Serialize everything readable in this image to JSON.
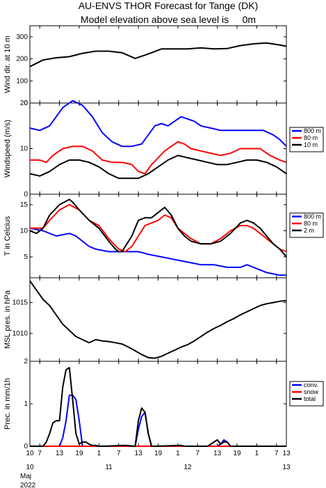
{
  "title_line1": "AU-ENVS THOR Forecast for Tange (DK)",
  "title_line2": "Model elevation above sea level is     0m",
  "x_axis": {
    "hour_labels": [
      "10",
      "7",
      "13",
      "19",
      "1",
      "7",
      "13",
      "19",
      "1",
      "7",
      "13",
      "19",
      "1",
      "7",
      "13"
    ],
    "day_labels": [
      "10",
      "11",
      "12",
      "13"
    ],
    "month_label": "Maj",
    "year_label": "2022"
  },
  "colors": {
    "blue": "#0000ff",
    "red": "#ff0000",
    "black": "#000000"
  },
  "chart_data": [
    {
      "type": "line",
      "ylabel": "Wind dir. at 10 m",
      "ylim": [
        0,
        350
      ],
      "yticks": [
        0,
        100,
        200,
        300
      ],
      "series": [
        {
          "color": "#000000",
          "x": [
            0,
            4,
            8,
            12,
            16,
            20,
            24,
            28,
            32,
            36,
            40,
            44,
            48,
            52,
            56,
            60,
            64,
            68,
            72,
            76,
            78
          ],
          "y": [
            165,
            195,
            205,
            210,
            225,
            235,
            235,
            228,
            202,
            222,
            245,
            245,
            245,
            250,
            245,
            247,
            260,
            268,
            272,
            263,
            257
          ]
        }
      ]
    },
    {
      "type": "line",
      "ylabel": "Windspeed (m/s)",
      "ylim": [
        0,
        20
      ],
      "yticks": [
        0,
        10,
        20
      ],
      "legend": [
        "800 m",
        "80 m",
        "10 m"
      ],
      "series": [
        {
          "name": "800 m",
          "color": "#0000ff",
          "x": [
            0,
            3,
            6,
            10,
            13,
            16,
            19,
            22,
            25,
            28,
            31,
            34,
            36,
            38,
            40,
            42,
            44,
            46,
            48,
            50,
            52,
            55,
            58,
            62,
            65,
            68,
            71,
            74,
            76,
            78
          ],
          "y": [
            14.5,
            14,
            15,
            19,
            20.5,
            19.5,
            17,
            13.5,
            11.5,
            10.5,
            10.5,
            11,
            13,
            15,
            15.5,
            15,
            16,
            17,
            16.5,
            16,
            15,
            14.5,
            14,
            14,
            14,
            14,
            14,
            13,
            12,
            10.5
          ]
        },
        {
          "name": "80 m",
          "color": "#ff0000",
          "x": [
            0,
            3,
            5,
            7,
            10,
            13,
            16,
            19,
            22,
            25,
            28,
            31,
            33,
            35,
            37,
            39,
            41,
            43,
            45,
            47,
            49,
            52,
            55,
            58,
            61,
            64,
            67,
            70,
            73,
            76,
            78
          ],
          "y": [
            7.5,
            7.5,
            7,
            8.5,
            10,
            10.5,
            10.5,
            9.5,
            7.5,
            7,
            7,
            6.5,
            5,
            4.5,
            6.5,
            8,
            9.5,
            10.5,
            11.5,
            11,
            10,
            9.5,
            9,
            8.5,
            9,
            10,
            10,
            10,
            8.5,
            7.5,
            7
          ]
        },
        {
          "name": "10 m",
          "color": "#000000",
          "x": [
            0,
            3,
            6,
            9,
            12,
            15,
            18,
            21,
            24,
            27,
            30,
            33,
            36,
            39,
            42,
            45,
            48,
            51,
            54,
            57,
            60,
            63,
            66,
            69,
            72,
            75,
            78
          ],
          "y": [
            4.5,
            4,
            5,
            6.5,
            7.5,
            7.5,
            7,
            6,
            4.5,
            3.5,
            3.5,
            3.5,
            4.5,
            6,
            7.5,
            8.5,
            8,
            7.5,
            7,
            6.5,
            6.5,
            7,
            7.5,
            7.5,
            7,
            6,
            4.5
          ]
        }
      ]
    },
    {
      "type": "line",
      "ylabel": "T in Celcius",
      "ylim": [
        1,
        17
      ],
      "yticks": [
        5,
        10,
        15
      ],
      "legend": [
        "800 m",
        "80 m",
        "2 m"
      ],
      "series": [
        {
          "name": "800 m",
          "color": "#0000ff",
          "x": [
            0,
            4,
            8,
            12,
            14,
            16,
            18,
            20,
            24,
            28,
            30,
            33,
            36,
            40,
            44,
            48,
            52,
            56,
            60,
            64,
            66,
            68,
            72,
            76,
            78
          ],
          "y": [
            10.5,
            10,
            9,
            9.5,
            9,
            8,
            7,
            6.5,
            6,
            6,
            6,
            6,
            5.5,
            5,
            4.5,
            4,
            3.5,
            3.5,
            3,
            3,
            3.5,
            3,
            2,
            1.5,
            1.5
          ]
        },
        {
          "name": "80 m",
          "color": "#ff0000",
          "x": [
            0,
            4,
            6,
            9,
            12,
            15,
            18,
            21,
            24,
            27,
            29,
            31,
            33,
            35,
            37,
            39,
            41,
            43,
            45,
            47,
            49,
            52,
            55,
            58,
            61,
            64,
            66,
            68,
            70,
            72,
            74,
            76,
            78
          ],
          "y": [
            10.5,
            10.5,
            12,
            14,
            15,
            14,
            12,
            11,
            8.5,
            6.5,
            6,
            7,
            9,
            11,
            11.5,
            12,
            13,
            12.5,
            10.5,
            9.5,
            8.5,
            7.5,
            7.5,
            8.5,
            10,
            11,
            11,
            10.5,
            9.5,
            8.5,
            7.5,
            6.5,
            6
          ]
        },
        {
          "name": "2 m",
          "color": "#000000",
          "x": [
            0,
            2,
            4,
            6,
            9,
            12,
            13,
            15,
            18,
            21,
            24,
            26,
            27,
            28,
            29,
            31,
            33,
            35,
            37,
            39,
            41,
            43,
            45,
            47,
            49,
            52,
            55,
            58,
            61,
            64,
            66,
            68,
            70,
            72,
            74,
            76,
            78
          ],
          "y": [
            10,
            9.5,
            10.5,
            13,
            15,
            16,
            15.5,
            14,
            12,
            10.5,
            8,
            6.5,
            6,
            6,
            7,
            9,
            12,
            12.5,
            12.5,
            13.5,
            14.5,
            13,
            10.5,
            9,
            8,
            7.5,
            7.5,
            8,
            9.5,
            11.5,
            12,
            11.5,
            10.5,
            9,
            7.5,
            6.5,
            5
          ]
        }
      ]
    },
    {
      "type": "line",
      "ylabel": "MSL pres. in hPa",
      "ylim": [
        1005.5,
        1019
      ],
      "yticks": [
        1010,
        1015
      ],
      "series": [
        {
          "color": "#000000",
          "x": [
            0,
            2,
            4,
            6,
            8,
            10,
            12,
            14,
            16,
            18,
            20,
            22,
            24,
            26,
            28,
            30,
            32,
            34,
            36,
            38,
            40,
            42,
            44,
            46,
            48,
            50,
            52,
            54,
            56,
            58,
            60,
            62,
            64,
            66,
            68,
            70,
            72,
            74,
            76,
            78
          ],
          "y": [
            1018.5,
            1017,
            1015.5,
            1014.5,
            1013,
            1011.5,
            1010.5,
            1009.5,
            1009,
            1008.5,
            1009,
            1008.8,
            1008.7,
            1008.5,
            1008.3,
            1007.8,
            1007.2,
            1006.6,
            1006.1,
            1006,
            1006.3,
            1006.8,
            1007.3,
            1007.8,
            1008.2,
            1008.8,
            1009.5,
            1010.2,
            1010.8,
            1011.3,
            1011.9,
            1012.4,
            1013,
            1013.5,
            1014,
            1014.5,
            1014.8,
            1015,
            1015.2,
            1015.3
          ]
        }
      ]
    },
    {
      "type": "line",
      "ylabel": "Prec. in mm/1h",
      "ylim": [
        0,
        2
      ],
      "yticks": [
        0,
        1,
        2
      ],
      "legend": [
        "conv.",
        "snow",
        "total"
      ],
      "series": [
        {
          "name": "conv.",
          "color": "#0000ff",
          "x": [
            0,
            9,
            10,
            11,
            12,
            13,
            14,
            15,
            16,
            17,
            18,
            19,
            29,
            32,
            33,
            34,
            35,
            36,
            37,
            38,
            56,
            57,
            58,
            59,
            60,
            61,
            62,
            78
          ],
          "y": [
            0,
            0,
            0.2,
            0.6,
            1.2,
            1.2,
            1.1,
            0.6,
            0,
            0,
            0,
            0,
            0,
            0,
            0.4,
            0.7,
            0.8,
            0.3,
            0,
            0,
            0,
            0,
            0.05,
            0.15,
            0.1,
            0,
            0,
            0
          ]
        },
        {
          "name": "snow",
          "color": "#ff0000",
          "x": [
            0,
            78
          ],
          "y": [
            0,
            0
          ]
        },
        {
          "name": "total",
          "color": "#000000",
          "x": [
            0,
            4,
            5,
            6,
            7,
            8,
            9,
            10,
            11,
            12,
            13,
            14,
            15,
            16,
            17,
            18,
            19,
            20,
            21,
            22,
            29,
            32,
            33,
            34,
            35,
            36,
            37,
            38,
            46,
            47,
            54,
            55,
            56,
            57,
            58,
            59,
            60,
            61,
            62,
            78
          ],
          "y": [
            0,
            0,
            0.1,
            0.3,
            0.55,
            0.6,
            0.6,
            1.4,
            1.8,
            1.85,
            1.1,
            0.3,
            0.05,
            0.1,
            0.1,
            0.05,
            0.02,
            0.02,
            0,
            0,
            0.02,
            0,
            0.6,
            0.9,
            0.8,
            0.3,
            0,
            0,
            0.02,
            0,
            0,
            0.05,
            0.1,
            0.15,
            0.05,
            0.1,
            0.1,
            0,
            0,
            0
          ]
        }
      ]
    }
  ]
}
